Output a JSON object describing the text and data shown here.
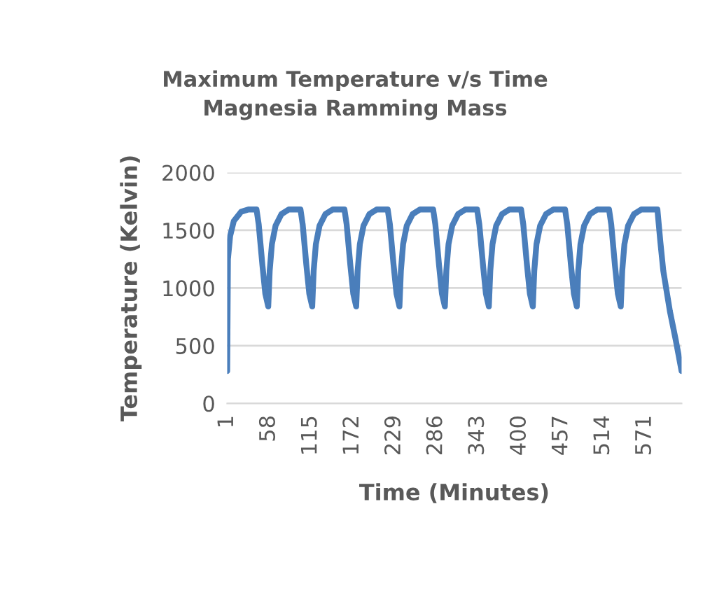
{
  "chart_data": {
    "type": "line",
    "title": "Maximum Temperature v/s Time\nMagnesia Ramming Mass",
    "xlabel": "Time (Minutes)",
    "ylabel": "Temperature (Kelvin)",
    "xlim": [
      1,
      621
    ],
    "xticks": [
      1,
      58,
      115,
      172,
      229,
      286,
      343,
      400,
      457,
      514,
      571
    ],
    "ylim": [
      0,
      2000
    ],
    "yticks": [
      0,
      500,
      1000,
      1500,
      2000
    ],
    "grid": "y",
    "marker": "none",
    "line_style": "solid",
    "series": [
      {
        "color": "#4a7ebb",
        "x": [
          1,
          2,
          5,
          10,
          20,
          30,
          41,
          44,
          49,
          53,
          57,
          59,
          62,
          67,
          75,
          85,
          101,
          104,
          109,
          113,
          117,
          119,
          122,
          127,
          135,
          145,
          161,
          164,
          169,
          173,
          177,
          179,
          182,
          187,
          195,
          205,
          220,
          223,
          228,
          232,
          236,
          238,
          241,
          246,
          254,
          264,
          282,
          285,
          290,
          294,
          298,
          300,
          303,
          308,
          316,
          326,
          342,
          345,
          350,
          354,
          358,
          360,
          363,
          368,
          376,
          386,
          402,
          405,
          410,
          414,
          418,
          420,
          423,
          428,
          436,
          446,
          462,
          465,
          470,
          474,
          478,
          480,
          483,
          488,
          496,
          506,
          522,
          525,
          530,
          534,
          538,
          540,
          543,
          548,
          556,
          566,
          588,
          592,
          596,
          605,
          613,
          621
        ],
        "values": [
          280,
          1250,
          1450,
          1580,
          1660,
          1680,
          1680,
          1550,
          1200,
          950,
          840,
          1150,
          1380,
          1540,
          1640,
          1680,
          1680,
          1550,
          1200,
          950,
          840,
          1150,
          1380,
          1540,
          1640,
          1680,
          1680,
          1550,
          1200,
          950,
          840,
          1150,
          1380,
          1540,
          1640,
          1680,
          1680,
          1550,
          1200,
          950,
          840,
          1150,
          1380,
          1540,
          1640,
          1680,
          1680,
          1550,
          1200,
          950,
          840,
          1150,
          1380,
          1540,
          1640,
          1680,
          1680,
          1550,
          1200,
          950,
          840,
          1150,
          1380,
          1540,
          1640,
          1680,
          1680,
          1550,
          1200,
          950,
          840,
          1150,
          1380,
          1540,
          1640,
          1680,
          1680,
          1550,
          1200,
          950,
          840,
          1150,
          1380,
          1540,
          1640,
          1680,
          1680,
          1550,
          1200,
          950,
          840,
          1150,
          1380,
          1540,
          1640,
          1680,
          1680,
          1400,
          1150,
          800,
          550,
          280
        ]
      }
    ]
  }
}
